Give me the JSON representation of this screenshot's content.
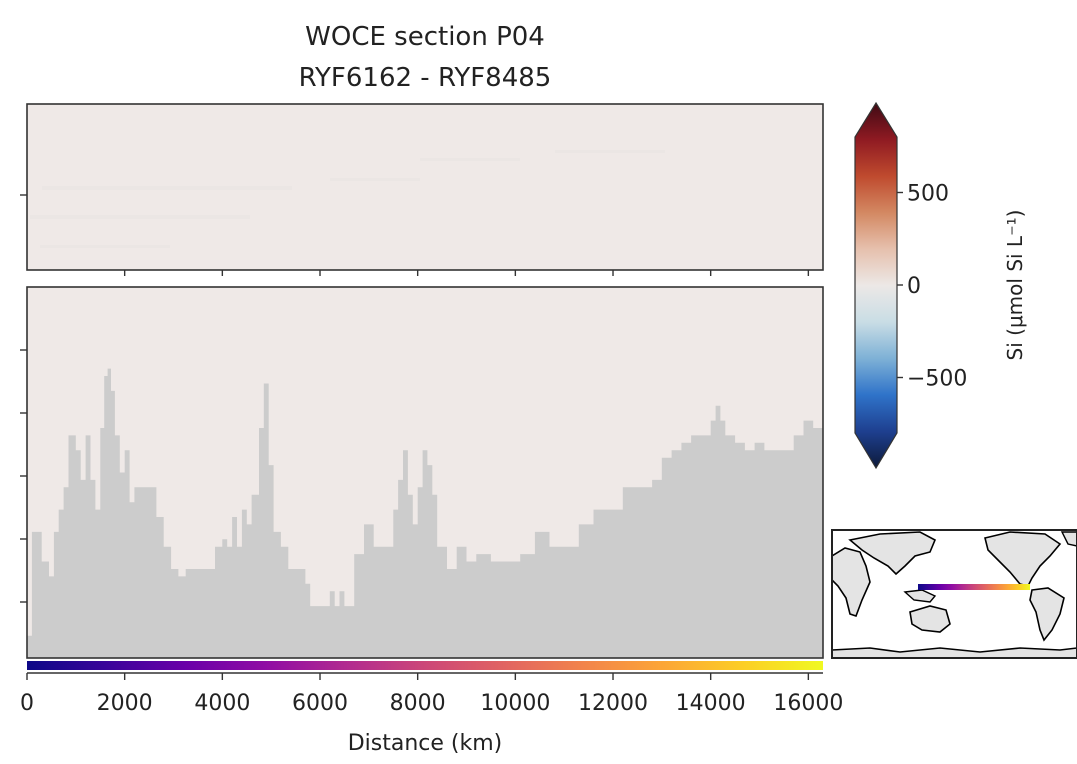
{
  "chart_data": {
    "type": "heatmap",
    "title_line1": "WOCE section P04",
    "title_line2": "RYF6162 - RYF8485",
    "xlabel": "Distance (km)",
    "xlim": [
      0,
      16300
    ],
    "x_ticks": [
      0,
      2000,
      4000,
      6000,
      8000,
      10000,
      12000,
      14000,
      16000
    ],
    "x_tick_labels": [
      "0",
      "2000",
      "4000",
      "6000",
      "8000",
      "10000",
      "12000",
      "14000",
      "16000"
    ],
    "upper_panel_ytick_count": 1,
    "upper_panel_xtick_count": 8,
    "lower_panel_ytick_count": 5,
    "field_value_approx": 0,
    "colorbar": {
      "label": "Si (μmol Si L⁻¹)",
      "range": [
        -800,
        800
      ],
      "ticks": [
        500,
        0,
        -500
      ],
      "tick_labels": [
        "500",
        "0",
        "−500"
      ],
      "extend": "both",
      "colors": [
        "#0d1a3a",
        "#1e3f8f",
        "#2f73c9",
        "#7eb1d6",
        "#c9dde5",
        "#ece8e6",
        "#e6c0ad",
        "#d38862",
        "#bf4a2e",
        "#8f1a22",
        "#3f0a14"
      ]
    },
    "land_color": "#cccccc",
    "ocean_color": "#efe9e7",
    "bathymetry_profile_fraction": [
      [
        0,
        0.06
      ],
      [
        100,
        0.34
      ],
      [
        200,
        0.34
      ],
      [
        300,
        0.26
      ],
      [
        450,
        0.22
      ],
      [
        550,
        0.34
      ],
      [
        650,
        0.4
      ],
      [
        750,
        0.46
      ],
      [
        850,
        0.6
      ],
      [
        1000,
        0.56
      ],
      [
        1100,
        0.48
      ],
      [
        1200,
        0.6
      ],
      [
        1300,
        0.48
      ],
      [
        1400,
        0.4
      ],
      [
        1500,
        0.62
      ],
      [
        1580,
        0.76
      ],
      [
        1650,
        0.78
      ],
      [
        1720,
        0.72
      ],
      [
        1800,
        0.6
      ],
      [
        1900,
        0.5
      ],
      [
        2000,
        0.56
      ],
      [
        2100,
        0.42
      ],
      [
        2200,
        0.46
      ],
      [
        2350,
        0.46
      ],
      [
        2500,
        0.46
      ],
      [
        2650,
        0.38
      ],
      [
        2800,
        0.3
      ],
      [
        2950,
        0.24
      ],
      [
        3100,
        0.22
      ],
      [
        3250,
        0.24
      ],
      [
        3500,
        0.24
      ],
      [
        3700,
        0.24
      ],
      [
        3850,
        0.3
      ],
      [
        4000,
        0.32
      ],
      [
        4100,
        0.3
      ],
      [
        4200,
        0.38
      ],
      [
        4300,
        0.3
      ],
      [
        4400,
        0.4
      ],
      [
        4500,
        0.36
      ],
      [
        4600,
        0.44
      ],
      [
        4750,
        0.62
      ],
      [
        4850,
        0.74
      ],
      [
        4950,
        0.52
      ],
      [
        5050,
        0.34
      ],
      [
        5200,
        0.3
      ],
      [
        5350,
        0.24
      ],
      [
        5500,
        0.24
      ],
      [
        5700,
        0.2
      ],
      [
        5800,
        0.14
      ],
      [
        6100,
        0.14
      ],
      [
        6200,
        0.18
      ],
      [
        6300,
        0.14
      ],
      [
        6400,
        0.18
      ],
      [
        6500,
        0.14
      ],
      [
        6700,
        0.28
      ],
      [
        6900,
        0.36
      ],
      [
        7100,
        0.3
      ],
      [
        7300,
        0.3
      ],
      [
        7500,
        0.4
      ],
      [
        7600,
        0.48
      ],
      [
        7700,
        0.56
      ],
      [
        7800,
        0.44
      ],
      [
        7900,
        0.36
      ],
      [
        8000,
        0.46
      ],
      [
        8100,
        0.56
      ],
      [
        8200,
        0.52
      ],
      [
        8300,
        0.44
      ],
      [
        8400,
        0.3
      ],
      [
        8600,
        0.24
      ],
      [
        8800,
        0.3
      ],
      [
        9000,
        0.26
      ],
      [
        9200,
        0.28
      ],
      [
        9500,
        0.26
      ],
      [
        9800,
        0.26
      ],
      [
        10100,
        0.28
      ],
      [
        10400,
        0.34
      ],
      [
        10700,
        0.3
      ],
      [
        11000,
        0.3
      ],
      [
        11300,
        0.36
      ],
      [
        11600,
        0.4
      ],
      [
        11900,
        0.4
      ],
      [
        12200,
        0.46
      ],
      [
        12500,
        0.46
      ],
      [
        12800,
        0.48
      ],
      [
        13000,
        0.54
      ],
      [
        13200,
        0.56
      ],
      [
        13400,
        0.58
      ],
      [
        13600,
        0.6
      ],
      [
        13900,
        0.6
      ],
      [
        14000,
        0.64
      ],
      [
        14100,
        0.68
      ],
      [
        14200,
        0.64
      ],
      [
        14300,
        0.6
      ],
      [
        14500,
        0.58
      ],
      [
        14700,
        0.56
      ],
      [
        14900,
        0.58
      ],
      [
        15100,
        0.56
      ],
      [
        15300,
        0.56
      ],
      [
        15500,
        0.56
      ],
      [
        15700,
        0.6
      ],
      [
        15900,
        0.64
      ],
      [
        16100,
        0.62
      ],
      [
        16300,
        0.62
      ]
    ],
    "track_color_stops": [
      "#0d0887",
      "#3a049a",
      "#6a00a8",
      "#900da4",
      "#b12a90",
      "#cc4778",
      "#e16462",
      "#f2844b",
      "#fca636",
      "#fcce25",
      "#f0f921"
    ],
    "inset_map": {
      "section_label": "P04",
      "track_lon_range": [
        125,
        275
      ],
      "track_lat": 10
    }
  }
}
